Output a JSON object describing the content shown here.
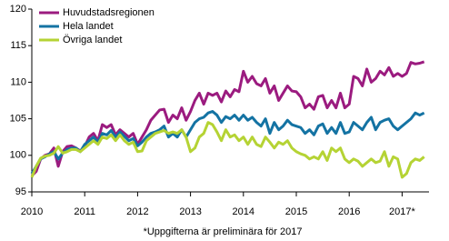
{
  "chart_data": {
    "type": "line",
    "footnote": "*Uppgifterna är preliminära för 2017",
    "categories": [
      "2010",
      null,
      null,
      null,
      null,
      null,
      null,
      null,
      null,
      null,
      null,
      null,
      "2011",
      null,
      null,
      null,
      null,
      null,
      null,
      null,
      null,
      null,
      null,
      null,
      "2012",
      null,
      null,
      null,
      null,
      null,
      null,
      null,
      null,
      null,
      null,
      null,
      "2013",
      null,
      null,
      null,
      null,
      null,
      null,
      null,
      null,
      null,
      null,
      null,
      "2014",
      null,
      null,
      null,
      null,
      null,
      null,
      null,
      null,
      null,
      null,
      null,
      "2015",
      null,
      null,
      null,
      null,
      null,
      null,
      null,
      null,
      null,
      null,
      null,
      "2016",
      null,
      null,
      null,
      null,
      null,
      null,
      null,
      null,
      null,
      null,
      null,
      "2017*",
      null,
      null,
      null,
      null,
      null
    ],
    "series": [
      {
        "name": "Huvudstadsregionen",
        "color": "#9b1b7f",
        "values": [
          97.2,
          97.8,
          99.5,
          100.0,
          100.2,
          101.0,
          98.5,
          100.5,
          101.2,
          101.3,
          101.0,
          100.6,
          101.2,
          102.5,
          103.0,
          102.0,
          104.2,
          103.8,
          104.2,
          102.8,
          103.5,
          103.0,
          102.5,
          103.0,
          101.5,
          102.5,
          103.5,
          104.8,
          105.5,
          106.2,
          106.3,
          104.5,
          105.5,
          105.0,
          106.5,
          104.8,
          106.0,
          107.5,
          108.5,
          107.0,
          108.5,
          108.2,
          108.5,
          107.3,
          108.8,
          108.0,
          109.0,
          108.7,
          111.5,
          110.0,
          110.8,
          109.8,
          109.5,
          110.5,
          108.5,
          109.5,
          107.5,
          108.5,
          109.5,
          108.8,
          108.7,
          108.0,
          106.5,
          107.0,
          106.3,
          108.0,
          108.2,
          106.5,
          107.5,
          106.5,
          108.5,
          106.5,
          107.0,
          110.8,
          110.5,
          109.5,
          111.8,
          110.0,
          110.5,
          111.5,
          111.0,
          112.0,
          110.8,
          111.2,
          110.8,
          111.2,
          112.7,
          112.5,
          112.6,
          112.8
        ]
      },
      {
        "name": "Hela landet",
        "color": "#1473a3",
        "values": [
          97.5,
          98.5,
          99.5,
          99.8,
          100.2,
          100.5,
          99.5,
          100.3,
          100.8,
          101.0,
          101.0,
          100.5,
          101.5,
          102.0,
          102.5,
          101.8,
          103.0,
          102.8,
          103.4,
          102.5,
          103.2,
          102.6,
          102.0,
          102.3,
          101.3,
          101.8,
          102.5,
          103.0,
          103.2,
          103.5,
          104.0,
          102.5,
          103.0,
          102.5,
          103.5,
          102.5,
          103.5,
          104.5,
          105.0,
          105.2,
          105.8,
          106.0,
          105.5,
          104.5,
          105.3,
          105.0,
          105.5,
          104.8,
          105.5,
          104.8,
          105.2,
          104.5,
          104.0,
          105.0,
          103.0,
          104.5,
          103.5,
          104.0,
          104.8,
          104.2,
          104.0,
          103.8,
          103.0,
          103.5,
          102.8,
          104.0,
          104.3,
          103.0,
          103.8,
          103.0,
          104.5,
          103.0,
          103.2,
          104.5,
          104.0,
          103.5,
          104.5,
          105.2,
          103.5,
          104.5,
          104.8,
          105.0,
          104.0,
          103.5,
          104.0,
          104.5,
          105.0,
          105.8,
          105.5,
          105.8
        ]
      },
      {
        "name": "Övriga landet",
        "color": "#b5d334",
        "values": [
          97.0,
          98.5,
          99.6,
          99.9,
          100.0,
          100.3,
          101.2,
          100.3,
          100.5,
          100.8,
          100.8,
          100.5,
          101.0,
          101.5,
          102.0,
          101.5,
          102.5,
          102.3,
          102.8,
          102.0,
          102.8,
          102.0,
          101.5,
          101.8,
          100.5,
          100.6,
          102.0,
          102.5,
          103.0,
          103.2,
          103.4,
          103.0,
          103.2,
          103.0,
          103.5,
          102.5,
          100.5,
          101.0,
          102.5,
          103.0,
          104.5,
          104.2,
          103.2,
          102.0,
          103.5,
          102.5,
          102.8,
          102.0,
          102.5,
          101.5,
          102.5,
          101.5,
          101.2,
          102.5,
          101.8,
          101.0,
          101.8,
          101.5,
          102.0,
          101.0,
          100.5,
          100.2,
          100.0,
          99.5,
          99.8,
          99.5,
          100.5,
          99.3,
          101.0,
          100.5,
          101.0,
          99.5,
          99.0,
          99.5,
          99.2,
          98.5,
          99.0,
          99.5,
          99.0,
          99.2,
          100.5,
          98.5,
          99.8,
          99.5,
          97.0,
          97.5,
          99.0,
          99.5,
          99.3,
          99.8
        ]
      }
    ],
    "ylim": [
      95,
      120
    ],
    "yticks": [
      95,
      100,
      105,
      110,
      115,
      120
    ],
    "grid": false,
    "legend": "upper left"
  }
}
